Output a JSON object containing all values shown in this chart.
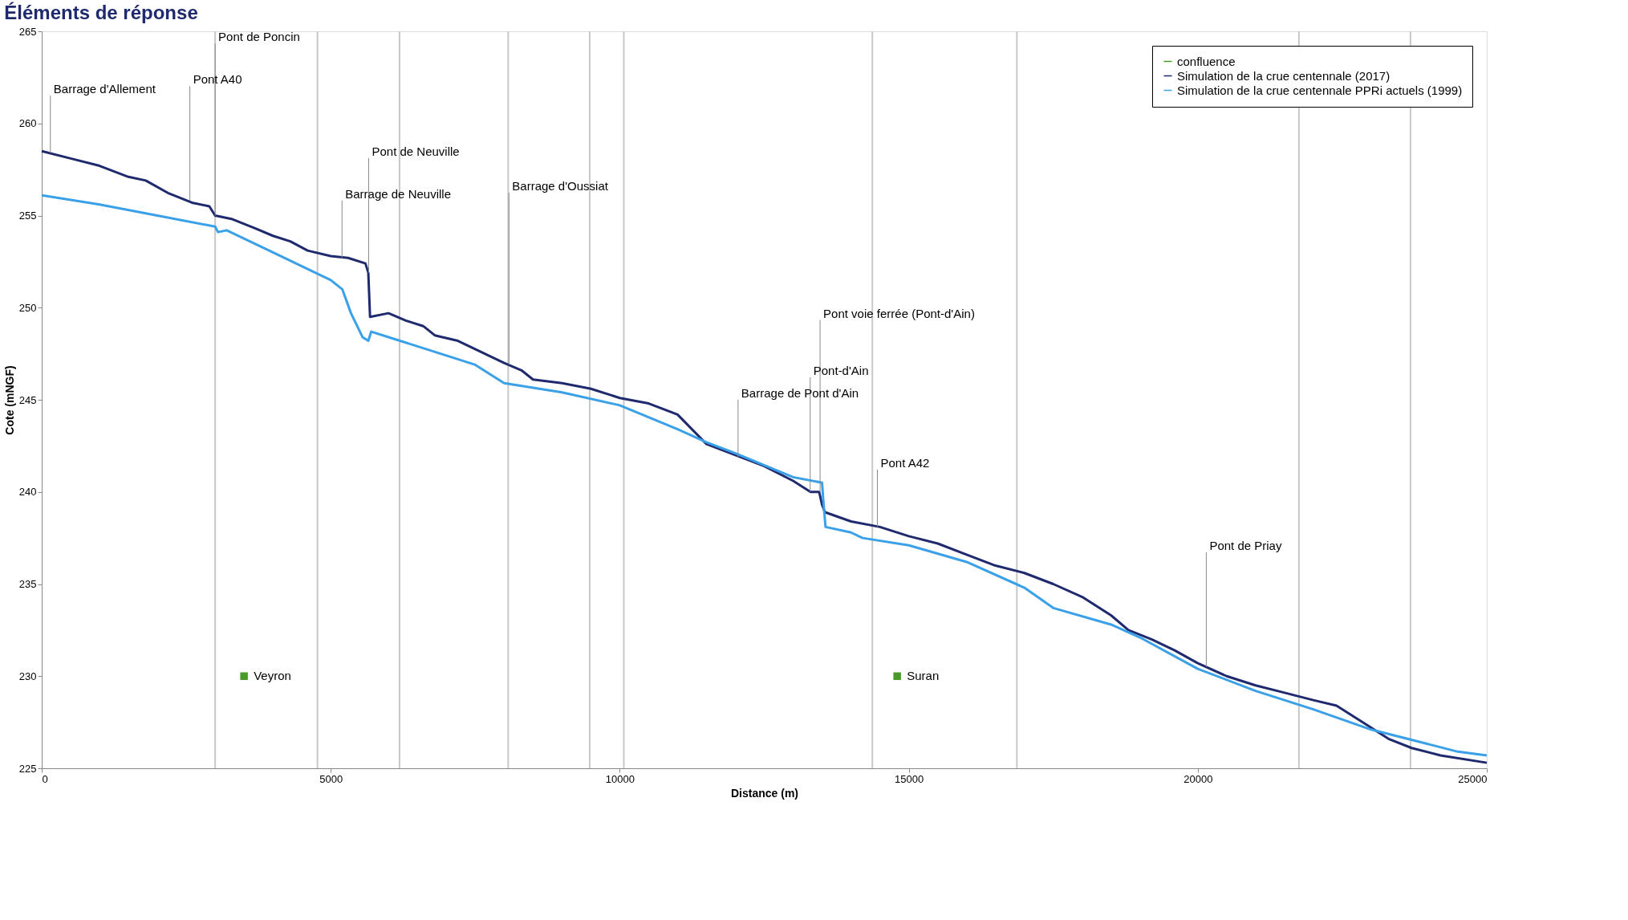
{
  "chart_data": {
    "type": "line",
    "title": "Éléments de réponse",
    "xlabel": "Distance (m)",
    "ylabel": "Cote (mNGF)",
    "xlim": [
      0,
      25000
    ],
    "xticks": [
      0,
      5000,
      10000,
      15000,
      20000,
      25000
    ],
    "ylim": [
      225,
      265
    ],
    "yticks": [
      225,
      230,
      235,
      240,
      245,
      250,
      255,
      260,
      265
    ],
    "grid": false,
    "legend": "top right",
    "series": [
      {
        "name": "confluence",
        "type": "scatter",
        "marker": "square",
        "color": "#4a9a2a",
        "x": [
          3500,
          14800
        ],
        "values": [
          230,
          230
        ],
        "value_labels": [
          "Veyron",
          "Suran"
        ]
      },
      {
        "name": "Simulation de la crue centennale (2017)",
        "color": "#1f2a6e",
        "x": [
          0,
          500,
          1000,
          1500,
          1800,
          2200,
          2600,
          2900,
          3000,
          3300,
          3700,
          4000,
          4300,
          4600,
          5000,
          5300,
          5600,
          5650,
          5680,
          6000,
          6300,
          6600,
          6800,
          7200,
          7600,
          8000,
          8300,
          8500,
          9000,
          9500,
          10000,
          10500,
          11000,
          11500,
          12000,
          12500,
          13000,
          13300,
          13450,
          13500,
          13550,
          14000,
          14500,
          15000,
          15500,
          16000,
          16500,
          17000,
          17500,
          18000,
          18500,
          18800,
          19200,
          19600,
          20000,
          20500,
          21000,
          21500,
          22000,
          22400,
          22800,
          23300,
          23700,
          24200,
          25000
        ],
        "values": [
          258.5,
          258.1,
          257.7,
          257.1,
          256.9,
          256.2,
          255.7,
          255.5,
          255.0,
          254.8,
          254.3,
          253.9,
          253.6,
          253.1,
          252.8,
          252.7,
          252.4,
          251.9,
          249.5,
          249.7,
          249.3,
          249.0,
          248.5,
          248.2,
          247.6,
          247.0,
          246.6,
          246.1,
          245.9,
          245.6,
          245.1,
          244.8,
          244.2,
          242.6,
          242.0,
          241.4,
          240.6,
          240.0,
          240.0,
          239.3,
          238.9,
          238.4,
          238.1,
          237.6,
          237.2,
          236.6,
          236.0,
          235.6,
          235.0,
          234.3,
          233.3,
          232.5,
          232.0,
          231.4,
          230.7,
          230.0,
          229.5,
          229.1,
          228.7,
          228.4,
          227.6,
          226.6,
          226.1,
          225.7,
          225.3
        ]
      },
      {
        "name": "Simulation de la crue centennale PPRi actuels (1999)",
        "color": "#3aa0e8",
        "x": [
          0,
          1000,
          2000,
          3000,
          3050,
          3200,
          4000,
          5000,
          5200,
          5350,
          5550,
          5650,
          5700,
          6000,
          7000,
          7500,
          8000,
          9000,
          10000,
          11000,
          11500,
          12000,
          13000,
          13500,
          13520,
          13560,
          14000,
          14200,
          15000,
          16000,
          17000,
          17500,
          18500,
          19000,
          20000,
          21000,
          22000,
          23000,
          24000,
          24500,
          25000
        ],
        "values": [
          256.1,
          255.6,
          255.0,
          254.4,
          254.1,
          254.2,
          253.0,
          251.5,
          251.0,
          249.7,
          248.4,
          248.2,
          248.7,
          248.4,
          247.4,
          246.9,
          245.9,
          245.4,
          244.7,
          243.4,
          242.7,
          242.1,
          240.8,
          240.5,
          239.6,
          238.1,
          237.8,
          237.5,
          237.1,
          236.2,
          234.8,
          233.7,
          232.8,
          232.1,
          230.4,
          229.2,
          228.2,
          227.1,
          226.3,
          225.9,
          225.7
        ]
      }
    ],
    "ref_lines": [
      {
        "axis": "x",
        "value": 3000,
        "label": null,
        "color": "#c8c8c8"
      },
      {
        "axis": "x",
        "value": 4770,
        "label": null,
        "color": "#c8c8c8"
      },
      {
        "axis": "x",
        "value": 6190,
        "label": null,
        "color": "#c8c8c8"
      },
      {
        "axis": "x",
        "value": 8070,
        "label": null,
        "color": "#c8c8c8"
      },
      {
        "axis": "x",
        "value": 9480,
        "label": null,
        "color": "#c8c8c8"
      },
      {
        "axis": "x",
        "value": 10070,
        "label": null,
        "color": "#c8c8c8"
      },
      {
        "axis": "x",
        "value": 14370,
        "label": null,
        "color": "#c8c8c8"
      },
      {
        "axis": "x",
        "value": 16870,
        "label": null,
        "color": "#c8c8c8"
      },
      {
        "axis": "x",
        "value": 21750,
        "label": null,
        "color": "#c8c8c8"
      },
      {
        "axis": "x",
        "value": 23680,
        "label": null,
        "color": "#c8c8c8"
      }
    ],
    "annotations": [
      {
        "text": "Barrage d'Allement",
        "x": 150,
        "y": 258.4
      },
      {
        "text": "Pont A40",
        "x": 2563,
        "y": 255.8
      },
      {
        "text": "Pont de Poncin",
        "x": 3000,
        "y": 255.0
      },
      {
        "text": "Barrage de Neuville",
        "x": 5195,
        "y": 252.7
      },
      {
        "text": "Pont de Neuville",
        "x": 5656,
        "y": 251.9
      },
      {
        "text": "Barrage d'Oussiat",
        "x": 8083,
        "y": 246.9
      },
      {
        "text": "Barrage de Pont d'Ain",
        "x": 12047,
        "y": 241.9
      },
      {
        "text": "Pont-d'Ain",
        "x": 13295,
        "y": 240.0
      },
      {
        "text": "Pont voie ferrée (Pont-d'Ain)",
        "x": 13466,
        "y": 240.0
      },
      {
        "text": "Pont A42",
        "x": 14457,
        "y": 238.1
      },
      {
        "text": "Pont de Priay",
        "x": 20147,
        "y": 230.5
      }
    ]
  }
}
